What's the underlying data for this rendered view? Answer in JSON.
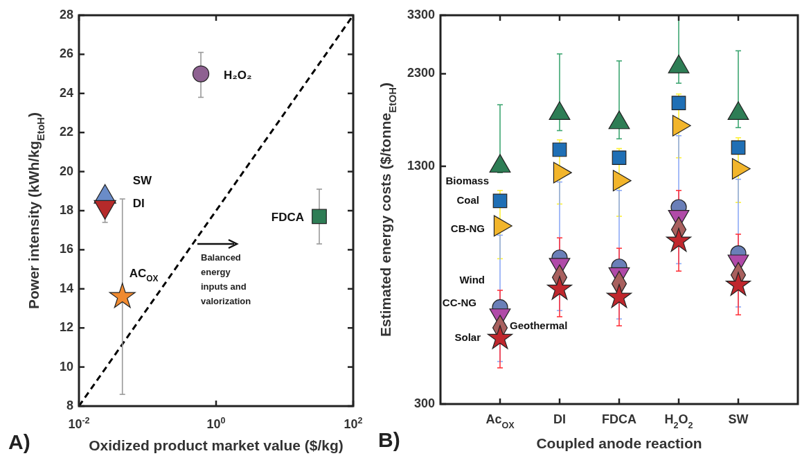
{
  "chart_data": [
    {
      "type": "scatter",
      "xlabel": "Oxidized product market value ($/kg)",
      "ylabel": "Power intensity (kWh/kg$_{EtoH}$)",
      "log": "x",
      "xlim": [
        0.01,
        100
      ],
      "xticks": [
        {
          "value": 0.01,
          "label": "10$^{-2}$"
        },
        {
          "value": 1,
          "label": "10$^{0}$"
        },
        {
          "value": 100,
          "label": "10$^{2}$"
        }
      ],
      "ylim": [
        8,
        28
      ],
      "yticks": [
        8,
        10,
        12,
        14,
        16,
        18,
        20,
        22,
        24,
        26,
        28
      ],
      "grid": false,
      "annotations": [
        "Balanced energy inputs and valorization",
        "A)"
      ],
      "series": [
        {
          "name": "SW",
          "color": "#6a8cc8",
          "marker": "triangle",
          "x": [
            0.024
          ],
          "values": [
            18.7
          ],
          "errors": [
            [
              18.5,
              19.0
            ]
          ]
        },
        {
          "name": "DI",
          "color": "#b52a2a",
          "marker": "triangle-down",
          "x": [
            0.024
          ],
          "values": [
            18.2
          ],
          "errors": [
            [
              17.4,
              18.5
            ]
          ]
        },
        {
          "name": "AC$_{OX}$",
          "color": "#f08a30",
          "marker": "star",
          "x": [
            0.043
          ],
          "values": [
            13.6
          ],
          "errors": [
            [
              8.6,
              18.6
            ]
          ]
        },
        {
          "name": "H₂O₂",
          "color": "#8e6191",
          "marker": "circle",
          "x": [
            0.6
          ],
          "values": [
            25.0
          ],
          "errors": [
            [
              23.8,
              26.1
            ]
          ]
        },
        {
          "name": "FDCA",
          "color": "#2e7d55",
          "marker": "square",
          "x": [
            32
          ],
          "values": [
            17.7
          ],
          "errors": [
            [
              16.3,
              19.1
            ]
          ]
        },
        {
          "type": "line",
          "color": "#000000",
          "line_style": "dashed",
          "x": [
            0.01,
            100
          ],
          "values": [
            8,
            28
          ]
        }
      ]
    },
    {
      "type": "scatter",
      "xlabel": "Coupled anode reaction",
      "ylabel": "Estimated energy costs ($/tonne$_{EtOH}$)",
      "log": "y",
      "ylim": [
        300,
        3300
      ],
      "yticks": [
        300,
        1300,
        2300,
        3300
      ],
      "grid": false,
      "categories": [
        "Ac$_{OX}$",
        "DI",
        "FDCA",
        "H$_{2}$O$_{2}$",
        "SW"
      ],
      "annotations": [
        "B)"
      ],
      "series": [
        {
          "name": "Biomass",
          "color": "#2e7d55",
          "marker": "triangle",
          "values": [
            1300,
            1800,
            1700,
            2400,
            1800
          ],
          "errors": [
            [
              1250,
              1900
            ],
            [
              1620,
              2600
            ],
            [
              1540,
              2490
            ],
            [
              2170,
              3300
            ],
            [
              1650,
              2650
            ]
          ]
        },
        {
          "name": "Coal",
          "color": "#1f6fb5",
          "marker": "square",
          "values": [
            1050,
            1440,
            1370,
            1920,
            1460
          ]
        },
        {
          "name": "CB-NG",
          "color": "#f2b52b",
          "marker": "triangle-right",
          "values": [
            900,
            1250,
            1190,
            1670,
            1280
          ],
          "errors": [
            [
              735,
              1120
            ],
            [
              1030,
              1530
            ],
            [
              955,
              1450
            ],
            [
              1370,
              2030
            ],
            [
              1040,
              1550
            ]
          ]
        },
        {
          "name": "Wind",
          "color": "#6a7fb8",
          "marker": "circle",
          "values": [
            545,
            740,
            700,
            1010,
            760
          ],
          "errors": [
            [
              390,
              850
            ],
            [
              534,
              1180
            ],
            [
              507,
              1120
            ],
            [
              713,
              1570
            ],
            [
              546,
              1200
            ]
          ]
        },
        {
          "name": "CC-NG",
          "color": "#b04aa8",
          "marker": "triangle-down",
          "values": [
            520,
            710,
            670,
            955,
            725
          ]
        },
        {
          "name": "Geothermal",
          "color": "#a8605e",
          "marker": "diamond",
          "values": [
            480,
            655,
            630,
            880,
            665
          ]
        },
        {
          "name": "Solar",
          "color": "#c0272d",
          "marker": "star",
          "values": [
            450,
            610,
            580,
            820,
            625
          ],
          "errors": [
            [
              375,
              605
            ],
            [
              514,
              836
            ],
            [
              486,
              784
            ],
            [
              681,
              1120
            ],
            [
              520,
              855
            ]
          ]
        }
      ]
    }
  ]
}
